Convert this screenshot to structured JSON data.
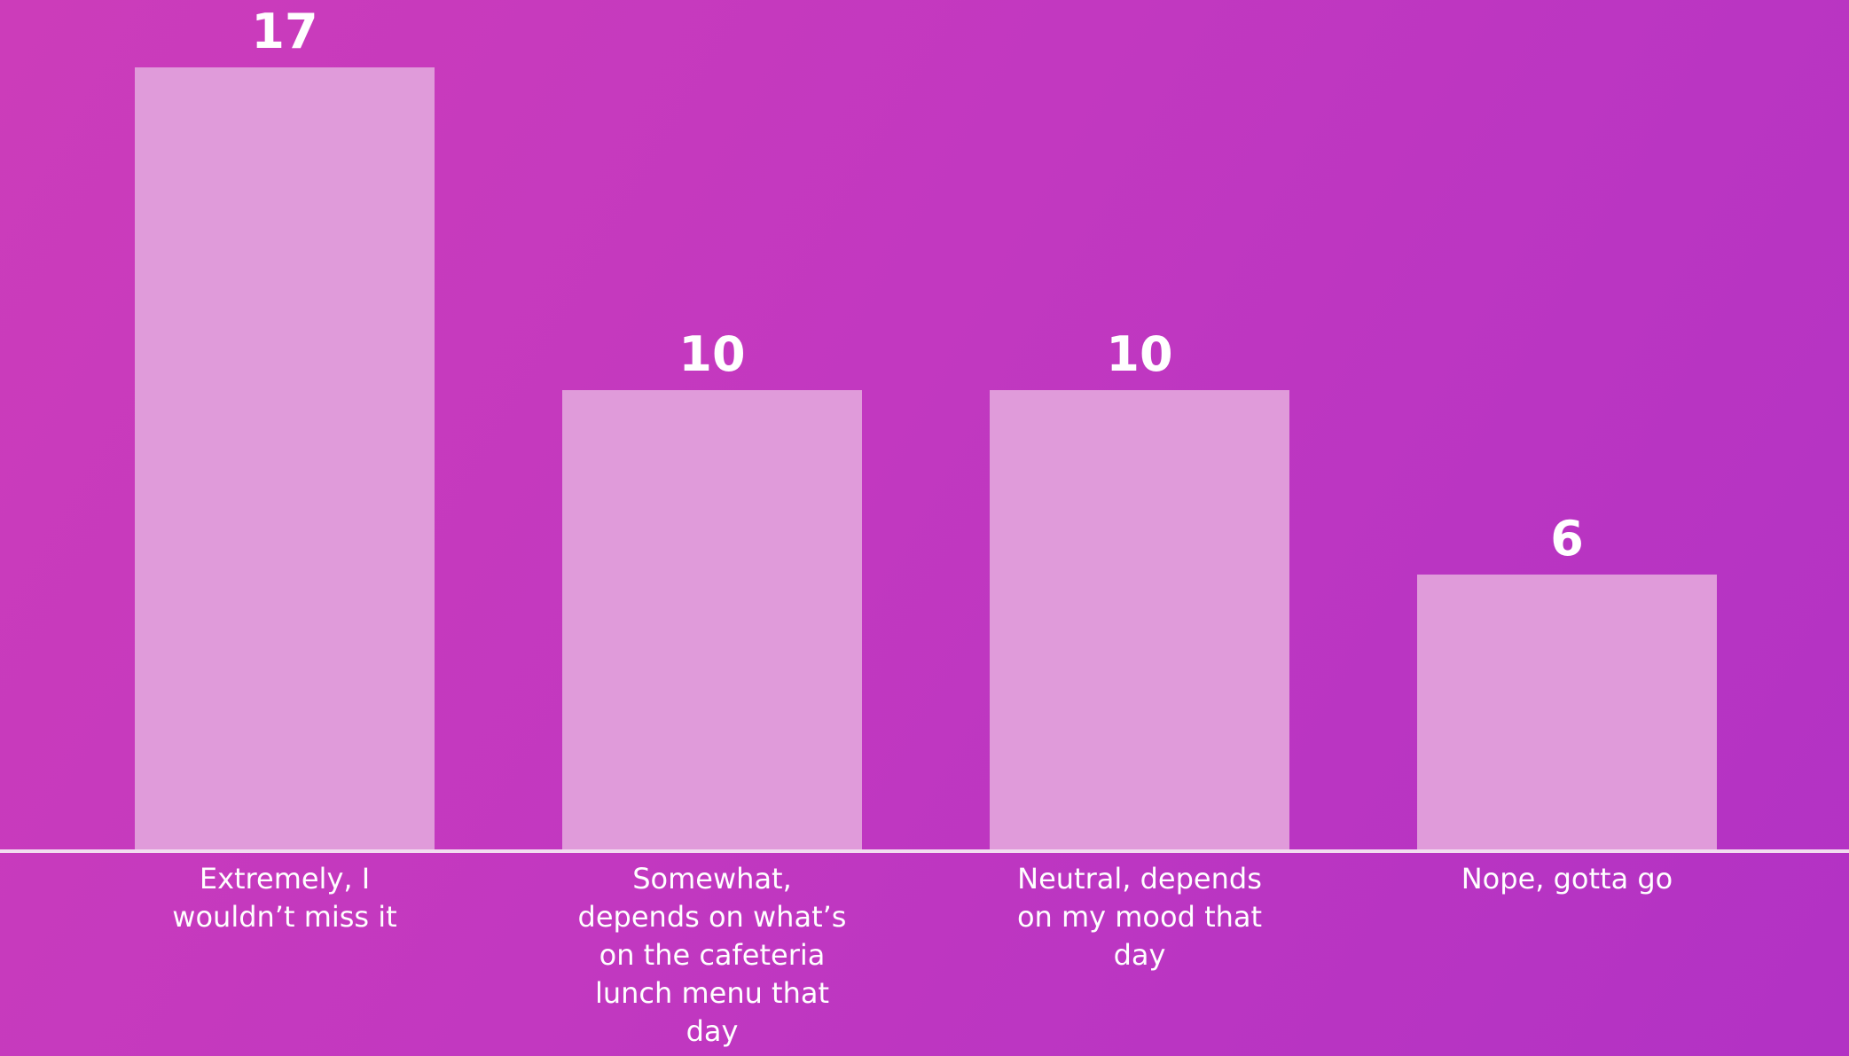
{
  "colors": {
    "background_start": "#cc3cba",
    "background_end": "#b232c4",
    "bar": "#e09bda",
    "baseline": "#f2dcf0",
    "text": "#ffffff"
  },
  "chart_data": {
    "type": "bar",
    "title": "",
    "xlabel": "",
    "ylabel": "",
    "grid": false,
    "legend": "none",
    "ylim": [
      0,
      17
    ],
    "categories": [
      "Extremely, I wouldn’t miss it",
      "Somewhat, depends on what’s on the cafeteria lunch menu that day",
      "Neutral, depends on my mood that day",
      "Nope, gotta go"
    ],
    "category_label_lines": [
      [
        "Extremely, I",
        "wouldn’t miss it"
      ],
      [
        "Somewhat,",
        "depends on what’s",
        "on the cafeteria",
        "lunch menu that",
        "day"
      ],
      [
        "Neutral, depends",
        "on my mood that",
        "day"
      ],
      [
        "Nope, gotta go"
      ]
    ],
    "values": [
      17,
      10,
      10,
      6
    ],
    "data_labels": [
      "17",
      "10",
      "10",
      "6"
    ]
  }
}
